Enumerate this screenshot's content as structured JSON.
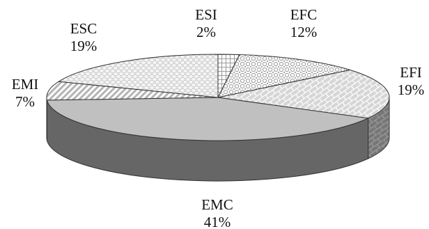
{
  "chart_data": {
    "type": "pie",
    "style": "3d",
    "start_angle_deg": 90,
    "direction": "clockwise",
    "title": "",
    "slices": [
      {
        "name": "ESI",
        "value": 2,
        "value_label": "2%",
        "pattern": "grid"
      },
      {
        "name": "EFC",
        "value": 12,
        "value_label": "12%",
        "pattern": "circles"
      },
      {
        "name": "EFI",
        "value": 19,
        "value_label": "19%",
        "pattern": "brick"
      },
      {
        "name": "EMC",
        "value": 41,
        "value_label": "41%",
        "pattern": "solid-gray"
      },
      {
        "name": "EMI",
        "value": 7,
        "value_label": "7%",
        "pattern": "diagonal-stripes"
      },
      {
        "name": "ESC",
        "value": 19,
        "value_label": "19%",
        "pattern": "checker"
      }
    ],
    "colors": {
      "outline": "#333333",
      "solid_top": "#c0c0c0",
      "solid_side": "#666666",
      "pattern_ink": "#9a9a9a",
      "text": "#111111"
    }
  }
}
